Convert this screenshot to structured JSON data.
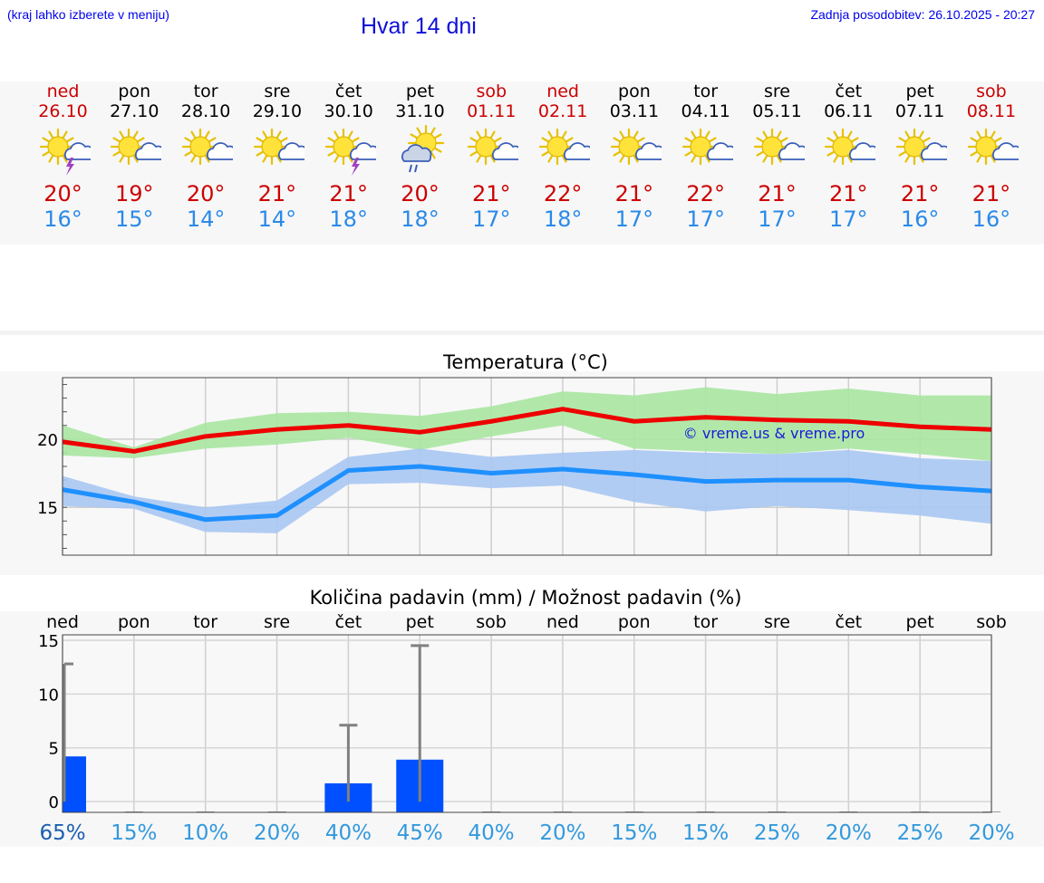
{
  "header": {
    "menu_hint": "(kraj lahko izberete v meniju)",
    "title": "Hvar 14 dni",
    "updated": "Zadnja posodobitev: 26.10.2025 - 20:27"
  },
  "colors": {
    "weekend": "#cc0000",
    "weekday": "#000000",
    "max_line": "#ee0000",
    "max_band": "#a8e6a1",
    "min_line": "#1e90ff",
    "min_band": "#a9c6f2",
    "bar": "#0050ff",
    "percent": "#3399dd"
  },
  "days": [
    {
      "name": "ned",
      "date": "26.10",
      "weekend": true,
      "icon": "sun-cloud-storm-icon",
      "max": "20°",
      "min": "16°"
    },
    {
      "name": "pon",
      "date": "27.10",
      "weekend": false,
      "icon": "sun-cloud-icon",
      "max": "19°",
      "min": "15°"
    },
    {
      "name": "tor",
      "date": "28.10",
      "weekend": false,
      "icon": "sun-cloud-icon",
      "max": "20°",
      "min": "14°"
    },
    {
      "name": "sre",
      "date": "29.10",
      "weekend": false,
      "icon": "sun-cloud-icon",
      "max": "21°",
      "min": "14°"
    },
    {
      "name": "čet",
      "date": "30.10",
      "weekend": false,
      "icon": "sun-cloud-storm-icon",
      "max": "21°",
      "min": "18°"
    },
    {
      "name": "pet",
      "date": "31.10",
      "weekend": false,
      "icon": "sun-cloud-rain-icon",
      "max": "20°",
      "min": "18°"
    },
    {
      "name": "sob",
      "date": "01.11",
      "weekend": true,
      "icon": "sun-cloud-icon",
      "max": "21°",
      "min": "17°"
    },
    {
      "name": "ned",
      "date": "02.11",
      "weekend": true,
      "icon": "sun-cloud-icon",
      "max": "22°",
      "min": "18°"
    },
    {
      "name": "pon",
      "date": "03.11",
      "weekend": false,
      "icon": "sun-cloud-icon",
      "max": "21°",
      "min": "17°"
    },
    {
      "name": "tor",
      "date": "04.11",
      "weekend": false,
      "icon": "sun-cloud-icon",
      "max": "22°",
      "min": "17°"
    },
    {
      "name": "sre",
      "date": "05.11",
      "weekend": false,
      "icon": "sun-cloud-icon",
      "max": "21°",
      "min": "17°"
    },
    {
      "name": "čet",
      "date": "06.11",
      "weekend": false,
      "icon": "sun-cloud-icon",
      "max": "21°",
      "min": "17°"
    },
    {
      "name": "pet",
      "date": "07.11",
      "weekend": false,
      "icon": "sun-cloud-icon",
      "max": "21°",
      "min": "16°"
    },
    {
      "name": "sob",
      "date": "08.11",
      "weekend": true,
      "icon": "sun-cloud-icon",
      "max": "21°",
      "min": "16°"
    }
  ],
  "chart_data": [
    {
      "type": "line",
      "title": "Temperatura (°C)",
      "watermark": "© vreme.us & vreme.pro",
      "ylim": [
        11.5,
        24.5
      ],
      "yticks": [
        15,
        20
      ],
      "grid": true,
      "x": [
        0,
        1,
        2,
        3,
        4,
        5,
        6,
        7,
        8,
        9,
        10,
        11,
        12,
        13
      ],
      "series": [
        {
          "name": "max",
          "values": [
            19.8,
            19.1,
            20.2,
            20.7,
            21.0,
            20.5,
            21.3,
            22.2,
            21.3,
            21.6,
            21.4,
            21.3,
            20.9,
            20.7
          ],
          "band_low": [
            18.8,
            18.6,
            19.3,
            19.6,
            20.1,
            19.2,
            20.2,
            21.0,
            19.3,
            19.1,
            18.9,
            19.3,
            18.9,
            18.4
          ],
          "band_high": [
            21.0,
            19.4,
            21.2,
            21.9,
            22.0,
            21.7,
            22.4,
            23.5,
            23.2,
            23.8,
            23.3,
            23.7,
            23.2,
            23.2
          ]
        },
        {
          "name": "min",
          "values": [
            16.3,
            15.4,
            14.1,
            14.4,
            17.7,
            18.0,
            17.5,
            17.8,
            17.4,
            16.9,
            17.0,
            17.0,
            16.5,
            16.2
          ],
          "band_low": [
            15.1,
            14.9,
            13.2,
            13.1,
            16.7,
            16.8,
            16.4,
            16.6,
            15.4,
            14.7,
            15.1,
            14.8,
            14.4,
            13.8
          ],
          "band_high": [
            17.3,
            15.8,
            15.0,
            15.5,
            18.7,
            19.3,
            18.7,
            19.0,
            19.2,
            19.0,
            18.9,
            19.2,
            18.6,
            18.4
          ]
        }
      ]
    },
    {
      "type": "bar",
      "title": "Količina padavin (mm) / Možnost padavin (%)",
      "categories": [
        "ned",
        "pon",
        "tor",
        "sre",
        "čet",
        "pet",
        "sob",
        "ned",
        "pon",
        "tor",
        "sre",
        "čet",
        "pet",
        "sob"
      ],
      "ylim": [
        -1,
        15.5
      ],
      "yticks": [
        0,
        5,
        10,
        15
      ],
      "values": [
        4.2,
        0,
        0,
        0,
        1.7,
        3.9,
        0,
        0,
        0,
        0,
        0,
        0,
        0,
        0
      ],
      "error_max": [
        12.8,
        0,
        0,
        0,
        7.1,
        14.5,
        0,
        0,
        0,
        0,
        0,
        0,
        0,
        0
      ],
      "probability": [
        "65%",
        "15%",
        "10%",
        "20%",
        "40%",
        "45%",
        "40%",
        "20%",
        "15%",
        "15%",
        "25%",
        "20%",
        "25%",
        "20%"
      ],
      "highlight_first": true
    }
  ]
}
